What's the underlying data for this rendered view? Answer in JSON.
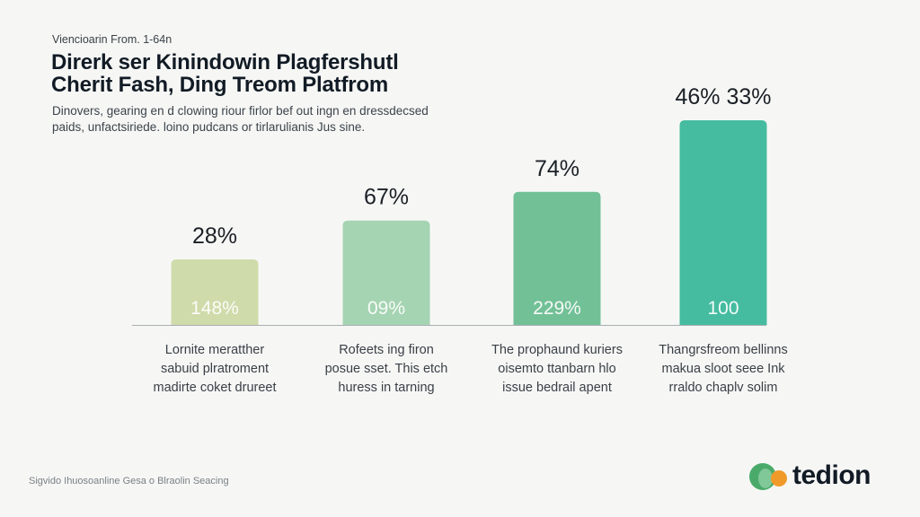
{
  "header": {
    "eyebrow": "Viencioarin From. 1-64n",
    "title_lines": [
      "Direrk ser Kinindowin Plagfershutl",
      "Cherit Fash, Ding Treom Platfrom"
    ],
    "subtitle_lines": [
      "Dinovers, gearing en d clowing riour firlor bef out ingn en dressdecsed",
      "paids, unfactsiriede. loino pudcans or tirlarulianis Jus sine."
    ]
  },
  "chart_data": {
    "type": "bar",
    "title": "Direrk ser Kinindowin Plagfershutl Cherit Fash, Ding Treom Platfrom",
    "xlabel": "",
    "ylabel": "",
    "ylim": [
      0,
      100
    ],
    "grid": false,
    "legend": "none",
    "categories": [
      [
        "Lornite meratther",
        "sabuid plratroment",
        "madirte coket drureet"
      ],
      [
        "Rofeets ing firon",
        "posue sset. This etch",
        "huress in tarning"
      ],
      [
        "The prophaund kuriers",
        "oisemto ttanbarn hlo",
        "issue bedrail apent"
      ],
      [
        "Thangrsfreom bellinns",
        "makua sloot seee Ink",
        "rraldo chaplv solim"
      ]
    ],
    "values": [
      32,
      51,
      65,
      100
    ],
    "top_labels": [
      "28%",
      "67%",
      "74%",
      "46% 33%"
    ],
    "inner_labels": [
      "148%",
      "09%",
      "229%",
      "100"
    ],
    "colors": [
      "#cfdbaa",
      "#a5d4b2",
      "#72c096",
      "#45bca0"
    ]
  },
  "footer": {
    "note": "Sigvido Ihuosoanline Gesa o Blraolin Seacing",
    "brand_name": "tedion",
    "brand_colors": {
      "green": "#4aaa6a",
      "orange": "#f09a2a"
    }
  }
}
